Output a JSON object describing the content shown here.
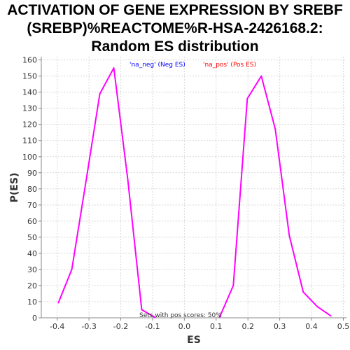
{
  "chart_data": {
    "type": "line",
    "title_lines": [
      "ACTIVATION OF GENE EXPRESSION BY SREBF",
      "(SREBP)%REACTOME%R-HSA-2426168.2:",
      "Random ES distribution"
    ],
    "xlabel": "ES",
    "ylabel": "P(ES)",
    "xlim": [
      -0.45,
      0.51
    ],
    "ylim": [
      0,
      162
    ],
    "xticks": [
      -0.4,
      -0.3,
      -0.2,
      -0.1,
      0.0,
      0.1,
      0.2,
      0.3,
      0.4,
      0.5
    ],
    "xtick_labels": [
      "-0.4",
      "-0.3",
      "-0.2",
      "-0.1",
      "0.0",
      "0.1",
      "0.2",
      "0.3",
      "0.4",
      "0.5"
    ],
    "yticks": [
      0,
      10,
      20,
      30,
      40,
      50,
      60,
      70,
      80,
      90,
      100,
      110,
      120,
      130,
      140,
      150,
      160
    ],
    "ytick_labels": [
      "0",
      "10",
      "20",
      "30",
      "40",
      "50",
      "60",
      "70",
      "80",
      "90",
      "100",
      "110",
      "120",
      "130",
      "140",
      "150",
      "160"
    ],
    "grid": true,
    "legend": [
      {
        "label": "'na_neg' (Neg ES)",
        "color": "#0000ff"
      },
      {
        "label": "'na_pos' (Pos ES)",
        "color": "#ff0000"
      }
    ],
    "series": [
      {
        "name": "Neg ES",
        "color": "#ff00ff",
        "x": [
          -0.397,
          -0.354,
          -0.31,
          -0.266,
          -0.222,
          -0.178,
          -0.134,
          -0.09
        ],
        "y": [
          9,
          30,
          84,
          139,
          155,
          86,
          5,
          0
        ]
      },
      {
        "name": "Pos ES",
        "color": "#ff00ff",
        "x": [
          0.11,
          0.154,
          0.198,
          0.242,
          0.286,
          0.33,
          0.374,
          0.418,
          0.462
        ],
        "y": [
          0,
          20,
          136,
          150,
          117,
          51,
          16,
          7,
          1
        ]
      }
    ],
    "annotation": "Sets with pos scores: 50%"
  }
}
